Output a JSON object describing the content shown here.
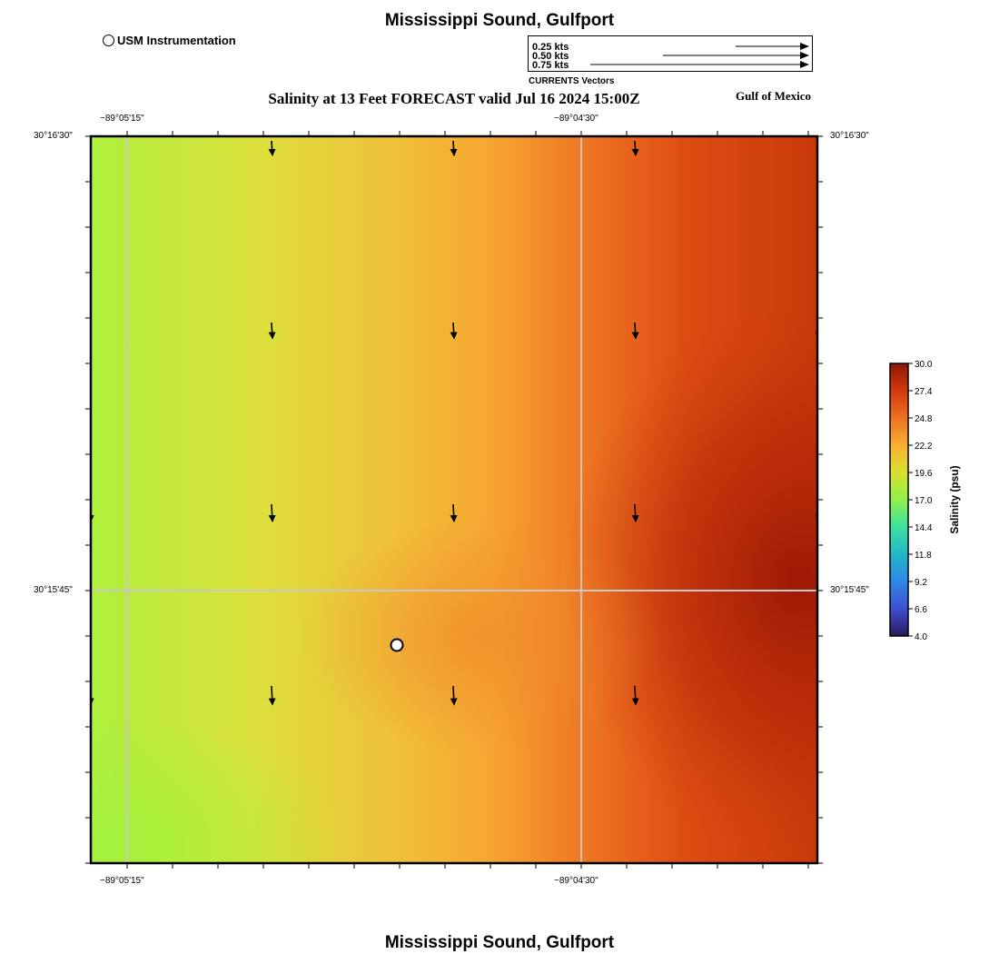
{
  "header": {
    "title": "Mississippi Sound, Gulfport",
    "subtitle": "Salinity at 13 Feet FORECAST valid Jul 16 2024 15:00Z",
    "region_label": "Gulf of Mexico",
    "instrument_legend": "USM Instrumentation"
  },
  "vector_legend": {
    "caption": "CURRENTS Vectors",
    "items": [
      {
        "label": "0.25 kts",
        "speed": 0.25
      },
      {
        "label": "0.50 kts",
        "speed": 0.5
      },
      {
        "label": "0.75 kts",
        "speed": 0.75
      }
    ]
  },
  "axes": {
    "lon_ticks": [
      "−89°05'15\"",
      "−89°04'30\""
    ],
    "lat_ticks": [
      "30°16'30\"",
      "30°15'45\""
    ]
  },
  "colorbar": {
    "label": "Salinity (psu)",
    "ticks": [
      "30.0",
      "27.4",
      "24.8",
      "22.2",
      "19.6",
      "17.0",
      "14.4",
      "11.8",
      "9.2",
      "6.6",
      "4.0"
    ],
    "min": 4.0,
    "max": 30.0,
    "colors": [
      "#2a1a5e",
      "#3d4fd0",
      "#2f86e8",
      "#1fb8c8",
      "#3ee0a0",
      "#8ff04a",
      "#d8e030",
      "#f8b030",
      "#f07020",
      "#d03a0c",
      "#8e1505"
    ]
  },
  "map": {
    "field_colors": {
      "low": "#a8f03c",
      "mid": "#f8a830",
      "high": "#9e1a06"
    },
    "station_count": 1
  },
  "footer": {
    "title": "Mississippi Sound, Gulfport"
  }
}
